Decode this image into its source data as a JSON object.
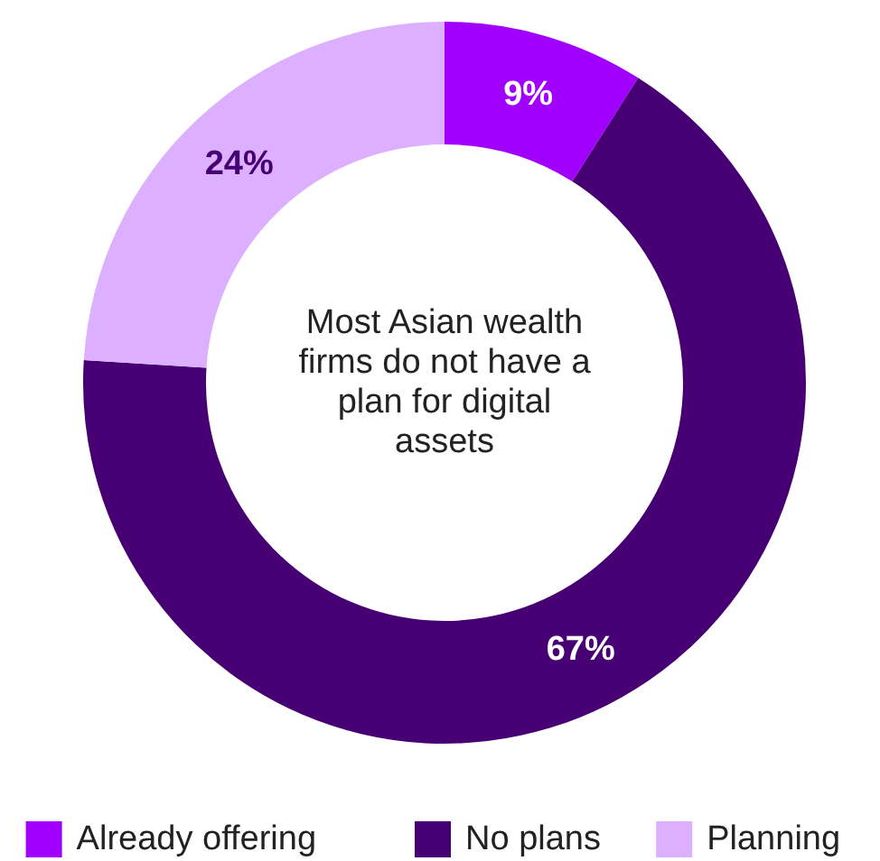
{
  "chart_data": {
    "type": "donut",
    "categories": [
      "Already offering",
      "No plans",
      "Planning"
    ],
    "values": [
      9,
      67,
      24
    ],
    "colors": [
      "#a100ff",
      "#460073",
      "#dcafff"
    ],
    "value_labels": [
      "9%",
      "67%",
      "24%"
    ],
    "annotations": [
      "Most Asian wealth firms do not have a plan for digital assets"
    ],
    "legend": "bottom"
  }
}
